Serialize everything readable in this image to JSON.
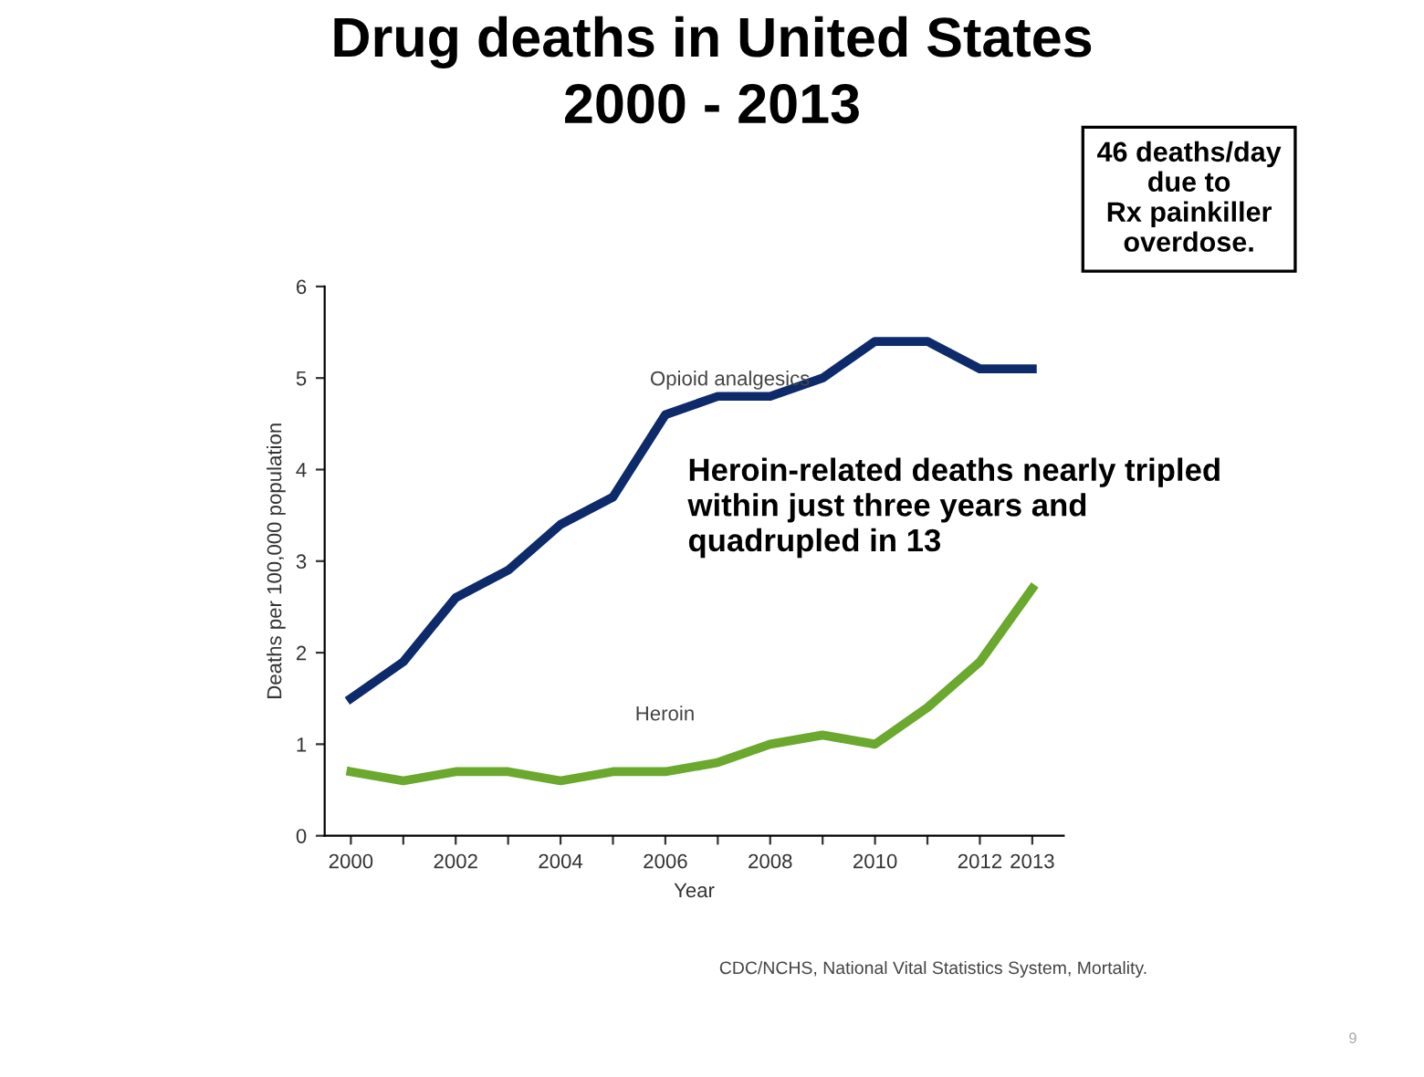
{
  "chart_data": {
    "type": "line",
    "title": "Drug deaths in United States\n2000 - 2013",
    "xlabel": "Year",
    "ylabel": "Deaths per 100,000 population",
    "x": [
      2000,
      2001,
      2002,
      2003,
      2004,
      2005,
      2006,
      2007,
      2008,
      2009,
      2010,
      2011,
      2012,
      2013
    ],
    "series": [
      {
        "name": "Opioid analgesics",
        "color": "#0d2a6b",
        "values": [
          1.5,
          1.9,
          2.6,
          2.9,
          3.4,
          3.7,
          4.6,
          4.8,
          4.8,
          5.0,
          5.4,
          5.4,
          5.1,
          5.1
        ]
      },
      {
        "name": "Heroin",
        "color": "#6aa82e",
        "values": [
          0.7,
          0.6,
          0.7,
          0.7,
          0.6,
          0.7,
          0.7,
          0.8,
          1.0,
          1.1,
          1.0,
          1.4,
          1.9,
          2.7
        ]
      }
    ],
    "xlim": [
      1999.5,
      2013.6
    ],
    "ylim": [
      0,
      6
    ],
    "xticks": [
      2000,
      {
        "value": 2001,
        "label": null
      },
      2002,
      {
        "value": 2003,
        "label": null
      },
      2004,
      {
        "value": 2005,
        "label": null
      },
      2006,
      {
        "value": 2007,
        "label": null
      },
      2008,
      {
        "value": 2009,
        "label": null
      },
      2010,
      {
        "value": 2011,
        "label": null
      },
      2012,
      2013
    ],
    "yticks": [
      0,
      1,
      2,
      3,
      4,
      5,
      6
    ],
    "grid": false,
    "legend": false,
    "marker": "none",
    "line_style": "solid",
    "annotations": [
      "46 deaths/day\ndue to\nRx painkiller\noverdose.",
      "Heroin-related deaths nearly tripled\nwithin just three years and\nquadrupled in 13",
      "CDC/NCHS, National Vital Statistics System, Mortality.",
      "9"
    ]
  }
}
